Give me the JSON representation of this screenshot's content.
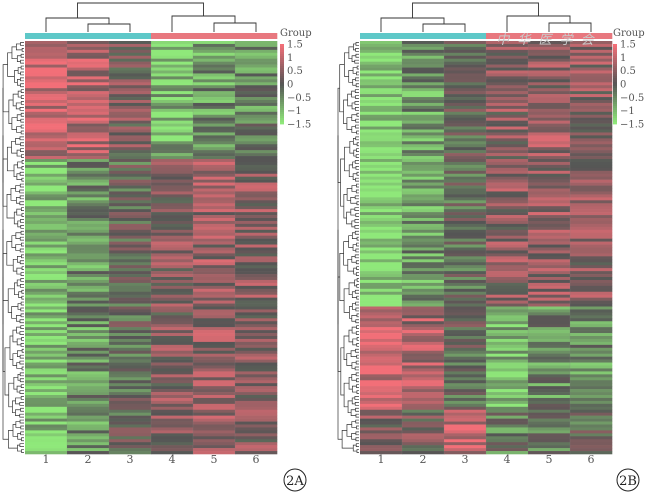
{
  "watermark": "中 华 医 学 会",
  "chart_data": [
    {
      "type": "heatmap",
      "panel_label": "2A",
      "columns": [
        "1",
        "2",
        "3",
        "4",
        "5",
        "6"
      ],
      "group_label": "Group",
      "group_colors": [
        "#5ec8c8",
        "#5ec8c8",
        "#5ec8c8",
        "#e8787f",
        "#e8787f",
        "#e8787f"
      ],
      "color_scale": {
        "min": -1.5,
        "max": 1.5,
        "low": "#8fe87a",
        "mid": "#555555",
        "high": "#f26f78"
      },
      "legend_ticks": [
        "1.5",
        "1",
        "0.5",
        "0",
        "−0.5",
        "−1",
        "−1.5"
      ],
      "legend_values": [
        1.5,
        1,
        0.5,
        0,
        -0.5,
        -1,
        -1.5
      ],
      "row_count": 140,
      "row_clusters": [
        {
          "rows": 40,
          "means": [
            1.1,
            0.9,
            0.3,
            -1.0,
            -0.7,
            -0.5
          ]
        },
        {
          "rows": 100,
          "means": [
            -1.2,
            -0.6,
            -0.1,
            0.4,
            0.6,
            0.5
          ]
        }
      ]
    },
    {
      "type": "heatmap",
      "panel_label": "2B",
      "columns": [
        "1",
        "2",
        "3",
        "4",
        "5",
        "6"
      ],
      "group_label": "Group",
      "group_colors": [
        "#5ec8c8",
        "#5ec8c8",
        "#5ec8c8",
        "#e8787f",
        "#e8787f",
        "#e8787f"
      ],
      "color_scale": {
        "min": -1.5,
        "max": 1.5,
        "low": "#8fe87a",
        "mid": "#555555",
        "high": "#f26f78"
      },
      "legend_ticks": [
        "1.5",
        "1",
        "0.5",
        "0",
        "−0.5",
        "−1",
        "−1.5"
      ],
      "legend_values": [
        1.5,
        1,
        0.5,
        0,
        -0.5,
        -1,
        -1.5
      ],
      "row_count": 140,
      "row_clusters": [
        {
          "rows": 90,
          "means": [
            -1.4,
            -0.7,
            -0.1,
            0.5,
            0.6,
            0.5
          ]
        },
        {
          "rows": 35,
          "means": [
            1.2,
            0.8,
            -0.1,
            -0.9,
            -0.5,
            -0.6
          ]
        },
        {
          "rows": 15,
          "means": [
            0.4,
            0.2,
            1.1,
            -0.4,
            -0.3,
            -0.2
          ]
        }
      ]
    }
  ]
}
